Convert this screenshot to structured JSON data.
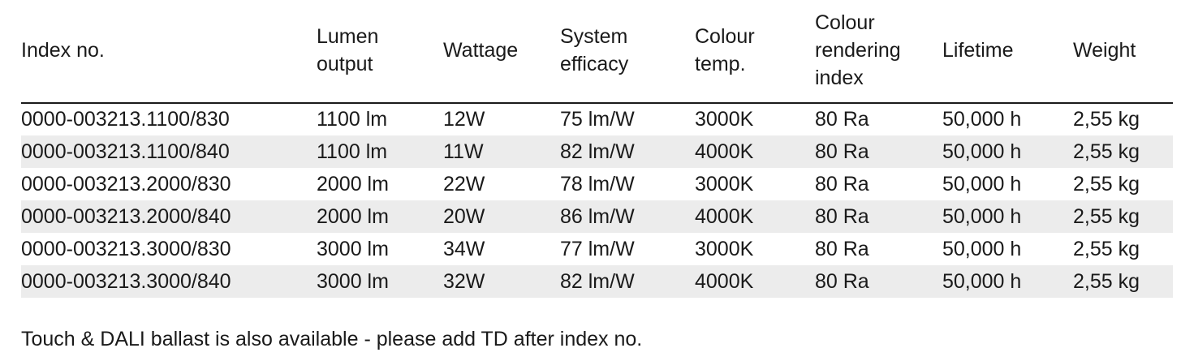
{
  "table": {
    "header": [
      [
        "Index no."
      ],
      [
        "Lumen",
        "output"
      ],
      [
        "Wattage"
      ],
      [
        "System",
        "efficacy"
      ],
      [
        "Colour",
        "temp."
      ],
      [
        "Colour",
        "rendering",
        "index"
      ],
      [
        "Lifetime"
      ],
      [
        "Weight"
      ]
    ],
    "rows": [
      [
        "0000-003213.1100/830",
        "1100 lm",
        "12W",
        "75 lm/W",
        "3000K",
        "80 Ra",
        "50,000 h",
        "2,55 kg"
      ],
      [
        "0000-003213.1100/840",
        "1100 lm",
        "11W",
        "82 lm/W",
        "4000K",
        "80 Ra",
        "50,000 h",
        "2,55 kg"
      ],
      [
        "0000-003213.2000/830",
        "2000 lm",
        "22W",
        "78 lm/W",
        "3000K",
        "80 Ra",
        "50,000 h",
        "2,55 kg"
      ],
      [
        "0000-003213.2000/840",
        "2000 lm",
        "20W",
        "86 lm/W",
        "4000K",
        "80 Ra",
        "50,000 h",
        "2,55 kg"
      ],
      [
        "0000-003213.3000/830",
        "3000 lm",
        "34W",
        "77 lm/W",
        "3000K",
        "80 Ra",
        "50,000 h",
        "2,55 kg"
      ],
      [
        "0000-003213.3000/840",
        "3000 lm",
        "32W",
        "82 lm/W",
        "4000K",
        "80 Ra",
        "50,000 h",
        "2,55 kg"
      ]
    ]
  },
  "footnote": "Touch & DALI ballast is also available - please add TD after index no."
}
